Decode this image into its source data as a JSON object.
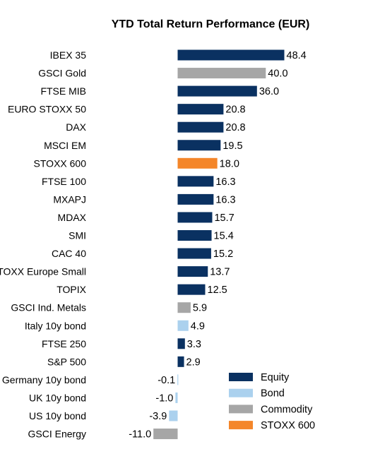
{
  "chart_data": {
    "type": "bar",
    "orientation": "horizontal",
    "title": "YTD Total Return Performance (EUR)",
    "xlabel": "",
    "ylabel": "",
    "grid": false,
    "legend_position": "bottom-right",
    "categories": [
      "IBEX 35",
      "GSCI Gold",
      "FTSE MIB",
      "EURO STOXX 50",
      "DAX",
      "MSCI EM",
      "STOXX 600",
      "FTSE 100",
      "MXAPJ",
      "MDAX",
      "SMI",
      "CAC 40",
      "STOXX Europe Small",
      "TOPIX",
      "GSCI Ind. Metals",
      "Italy 10y bond",
      "FTSE 250",
      "S&P 500",
      "Germany 10y bond",
      "UK 10y bond",
      "US 10y bond",
      "GSCI Energy"
    ],
    "values": [
      48.4,
      40.0,
      36.0,
      20.8,
      20.8,
      19.5,
      18.0,
      16.3,
      16.3,
      15.7,
      15.4,
      15.2,
      13.7,
      12.5,
      5.9,
      4.9,
      3.3,
      2.9,
      -0.1,
      -1.0,
      -3.9,
      -11.0
    ],
    "value_labels": [
      "48.4",
      "40.0",
      "36.0",
      "20.8",
      "20.8",
      "19.5",
      "18.0",
      "16.3",
      "16.3",
      "15.7",
      "15.4",
      "15.2",
      "13.7",
      "12.5",
      "5.9",
      "4.9",
      "3.3",
      "2.9",
      "-0.1",
      "-1.0",
      "-3.9",
      "-11.0"
    ],
    "groups": [
      "Equity",
      "Commodity",
      "Equity",
      "Equity",
      "Equity",
      "Equity",
      "STOXX 600",
      "Equity",
      "Equity",
      "Equity",
      "Equity",
      "Equity",
      "Equity",
      "Equity",
      "Commodity",
      "Bond",
      "Equity",
      "Equity",
      "Bond",
      "Bond",
      "Bond",
      "Commodity"
    ],
    "legend": [
      {
        "name": "Equity",
        "color": "#0a3161"
      },
      {
        "name": "Bond",
        "color": "#abd1ee"
      },
      {
        "name": "Commodity",
        "color": "#a6a6a6"
      },
      {
        "name": "STOXX 600",
        "color": "#f4862a"
      }
    ]
  }
}
